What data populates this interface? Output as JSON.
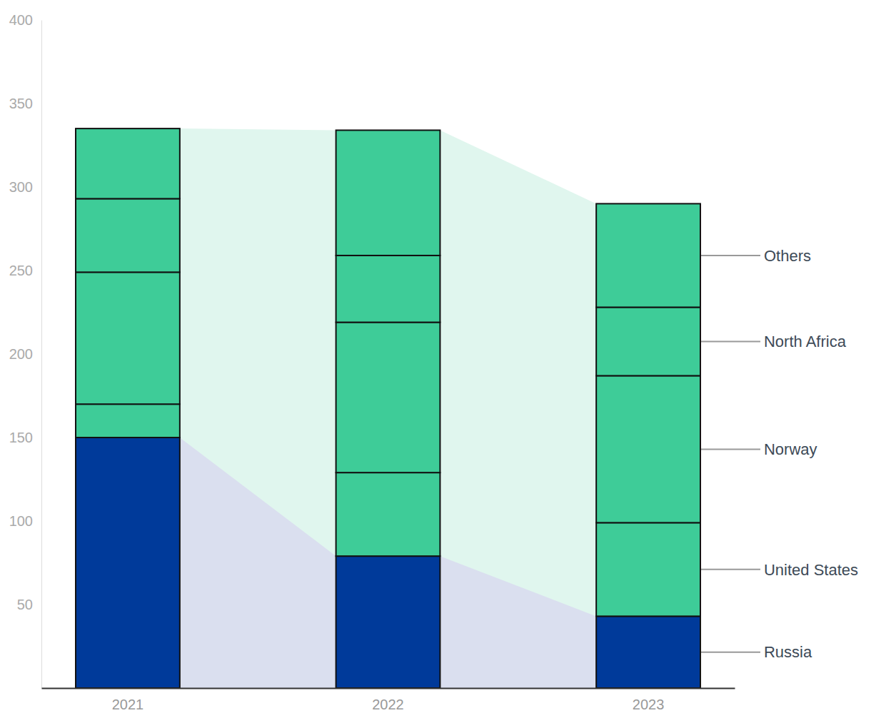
{
  "chart_data": {
    "type": "bar",
    "stacked": true,
    "grid": false,
    "categories": [
      "2021",
      "2022",
      "2023"
    ],
    "series": [
      {
        "name": "Russia",
        "color": "#003a9a",
        "values": [
          150,
          79,
          43
        ]
      },
      {
        "name": "United States",
        "color": "#3ecc98",
        "values": [
          20,
          50,
          56
        ]
      },
      {
        "name": "Norway",
        "color": "#3ecc98",
        "values": [
          79,
          90,
          88
        ]
      },
      {
        "name": "North Africa",
        "color": "#3ecc98",
        "values": [
          44,
          40,
          41
        ]
      },
      {
        "name": "Others",
        "color": "#3ecc98",
        "values": [
          42,
          75,
          62
        ]
      }
    ],
    "ylim": [
      0,
      400
    ],
    "yticks": [
      50,
      100,
      150,
      200,
      250,
      300,
      350,
      400
    ]
  }
}
